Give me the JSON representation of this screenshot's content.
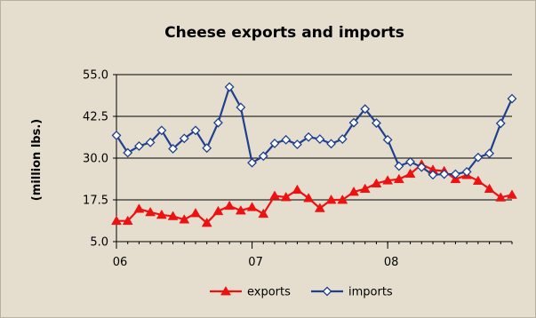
{
  "chart_data": {
    "type": "line",
    "title": "Cheese exports and imports",
    "xlabel": "",
    "ylabel": "(million  lbs.)",
    "ylim": [
      5.0,
      55.0
    ],
    "yticks": [
      "55.0",
      "42.5",
      "30.0",
      "17.5",
      "5.0"
    ],
    "ytick_values": [
      55.0,
      42.5,
      30.0,
      17.5,
      5.0
    ],
    "xtick_labels": [
      "06",
      "07",
      "08"
    ],
    "xtick_indices": [
      0,
      12,
      24
    ],
    "grid": "horizontal",
    "legend_position": "bottom",
    "series": [
      {
        "name": "exports",
        "color": "#ee1111",
        "marker": "triangle",
        "values": [
          11.2,
          11.2,
          14.8,
          13.8,
          13.0,
          12.6,
          11.6,
          13.5,
          10.6,
          14.1,
          15.7,
          14.3,
          15.3,
          13.3,
          18.7,
          18.3,
          20.5,
          18.0,
          15.0,
          17.5,
          17.5,
          19.9,
          20.8,
          22.4,
          23.3,
          23.7,
          25.3,
          28.1,
          26.5,
          26.1,
          23.7,
          24.9,
          23.2,
          20.8,
          18.2,
          19.0
        ]
      },
      {
        "name": "imports",
        "color": "#1f3f8f",
        "marker": "diamond",
        "values": [
          36.8,
          31.6,
          33.6,
          34.7,
          38.3,
          32.8,
          35.9,
          38.3,
          33.0,
          40.6,
          51.3,
          45.2,
          28.6,
          30.6,
          34.4,
          35.5,
          34.1,
          36.3,
          35.7,
          34.3,
          35.7,
          40.6,
          44.7,
          40.5,
          35.5,
          27.6,
          28.9,
          27.3,
          25.0,
          25.2,
          25.2,
          25.9,
          30.2,
          31.4,
          40.4,
          47.8
        ]
      }
    ]
  }
}
